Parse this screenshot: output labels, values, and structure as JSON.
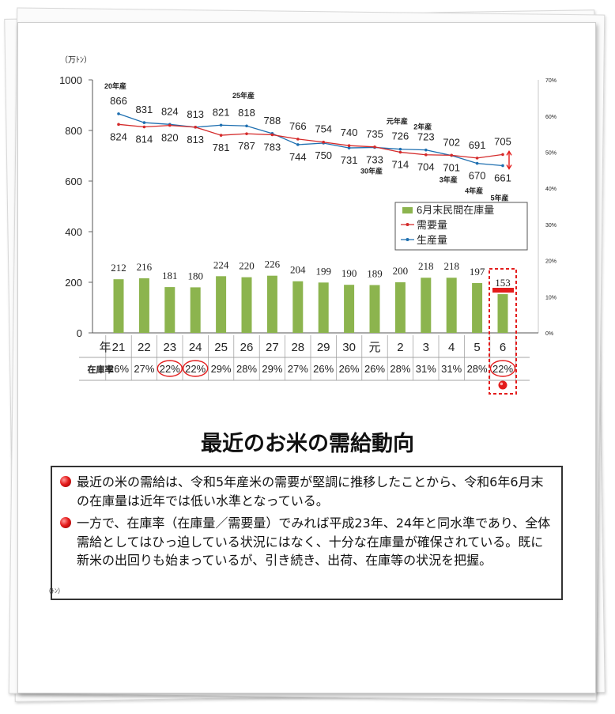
{
  "chart_data": {
    "type": "bar+line",
    "unit_label": "（万ﾄﾝ）",
    "ylim": [
      0,
      1000
    ],
    "yticks": [
      "0",
      "200",
      "400",
      "600",
      "800",
      "1000"
    ],
    "right_axis_ticks": [
      "0%",
      "10%",
      "20%",
      "30%",
      "40%",
      "50%",
      "60%",
      "70%"
    ],
    "year_header": "年",
    "ratio_header": "在庫率",
    "categories": [
      "21",
      "22",
      "23",
      "24",
      "25",
      "26",
      "27",
      "28",
      "29",
      "30",
      "元",
      "2",
      "3",
      "4",
      "5",
      "6"
    ],
    "series": [
      {
        "name": "6月末民間在庫量",
        "kind": "bar",
        "color": "#8cb44e",
        "values": [
          212,
          216,
          181,
          180,
          224,
          220,
          226,
          204,
          199,
          190,
          189,
          200,
          218,
          218,
          197,
          153
        ]
      },
      {
        "name": "需要量",
        "kind": "line",
        "color": "#d42a2a",
        "values": [
          824,
          814,
          820,
          813,
          781,
          787,
          783,
          766,
          754,
          740,
          735,
          714,
          704,
          702,
          691,
          705
        ]
      },
      {
        "name": "生産量",
        "kind": "line",
        "color": "#1e6fb0",
        "values": [
          866,
          831,
          824,
          813,
          821,
          818,
          788,
          744,
          750,
          731,
          733,
          726,
          723,
          701,
          670,
          661
        ]
      }
    ],
    "stock_ratio": [
      "26%",
      "27%",
      "22%",
      "22%",
      "29%",
      "28%",
      "29%",
      "27%",
      "26%",
      "26%",
      "26%",
      "28%",
      "31%",
      "31%",
      "28%",
      "22%"
    ],
    "highlighted_ratio_indices": [
      2,
      3,
      15
    ],
    "annotations": [
      "20年産",
      "25年産",
      "30年産",
      "元年産",
      "2年産",
      "3年産",
      "4年産",
      "5年産"
    ]
  },
  "headline": "最近のお米の需給動向",
  "notes": [
    "最近の米の需給は、令和5年産米の需要が堅調に推移したことから、令和6年6月末の在庫量は近年では低い水準となっている。",
    "一方で、在庫率（在庫量／需要量）でみれば平成23年、24年と同水準であり、全体需給としてはひっ迫している状況にはなく、十分な在庫量が確保されている。既に新米の出回りも始まっているが、引き続き、出荷、在庫等の状況を把握。"
  ],
  "stray_unit": "（ﾄﾝ）",
  "colors": {
    "bar": "#8cb44e",
    "demand": "#d42a2a",
    "production": "#1e6fb0",
    "highlight": "#e31c1c",
    "annotation": "#1e6fb0"
  }
}
